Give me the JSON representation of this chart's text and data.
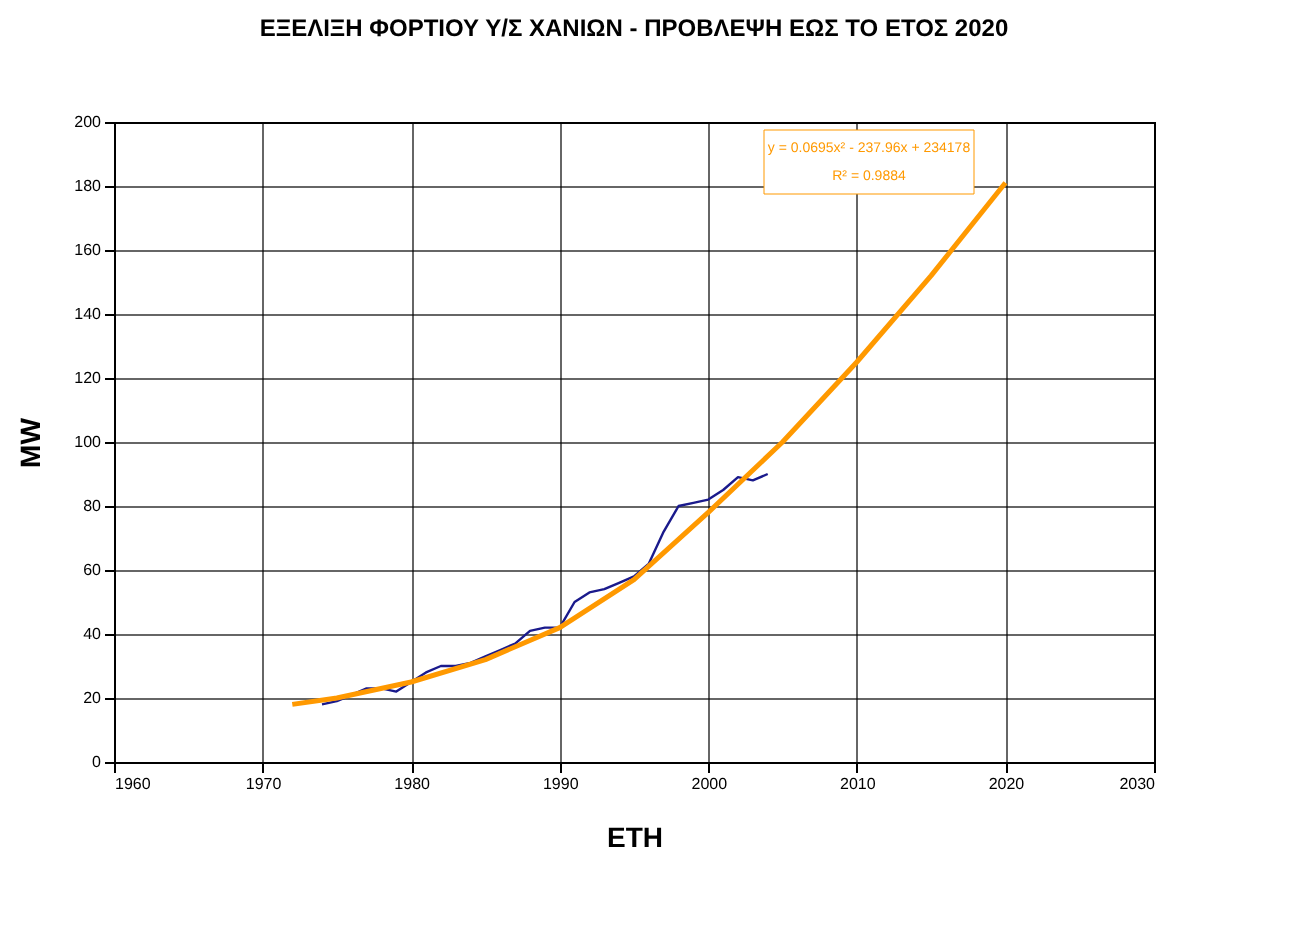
{
  "chart_data": {
    "type": "line",
    "title": "ΕΞΕΛΙΞΗ ΦΟΡΤΙΟΥ Υ/Σ ΧΑΝΙΩΝ - ΠΡΟΒΛΕΨΗ ΕΩΣ ΤΟ ΕΤΟΣ 2020",
    "xlabel": "ΕΤΗ",
    "ylabel": "MW",
    "annotations": [
      "y = 0.0695x² - 237.96x + 234178",
      "R² = 0.9884"
    ],
    "series": [
      {
        "color": "#1a1a8c",
        "x": [
          1974,
          1975,
          1976,
          1977,
          1978,
          1979,
          1980,
          1981,
          1982,
          1983,
          1984,
          1985,
          1986,
          1987,
          1988,
          1989,
          1990,
          1991,
          1992,
          1993,
          1994,
          1995,
          1996,
          1997,
          1998,
          1999,
          2000,
          2001,
          2002,
          2003,
          2004
        ],
        "values": [
          18,
          19,
          21,
          23,
          23,
          22,
          25,
          28,
          30,
          30,
          31,
          33,
          35,
          37,
          41,
          42,
          42,
          50,
          53,
          54,
          56,
          58,
          62,
          72,
          80,
          81,
          82,
          85,
          89,
          88,
          90
        ]
      },
      {
        "color": "#ff9900",
        "x": [
          1972,
          1975,
          1980,
          1985,
          1990,
          1995,
          2000,
          2005,
          2010,
          2015,
          2020
        ],
        "values": [
          18,
          20,
          25,
          32,
          42,
          57,
          78,
          100,
          125,
          152,
          181
        ]
      }
    ],
    "xlim": [
      1960,
      2030
    ],
    "xticks": [
      1960,
      1970,
      1980,
      1990,
      2000,
      2010,
      2020,
      2030
    ],
    "ylim": [
      0,
      200
    ],
    "yticks": [
      0,
      20,
      40,
      60,
      80,
      100,
      120,
      140,
      160,
      180,
      200
    ],
    "grid": true,
    "marker": "none",
    "line_style": "solid"
  }
}
